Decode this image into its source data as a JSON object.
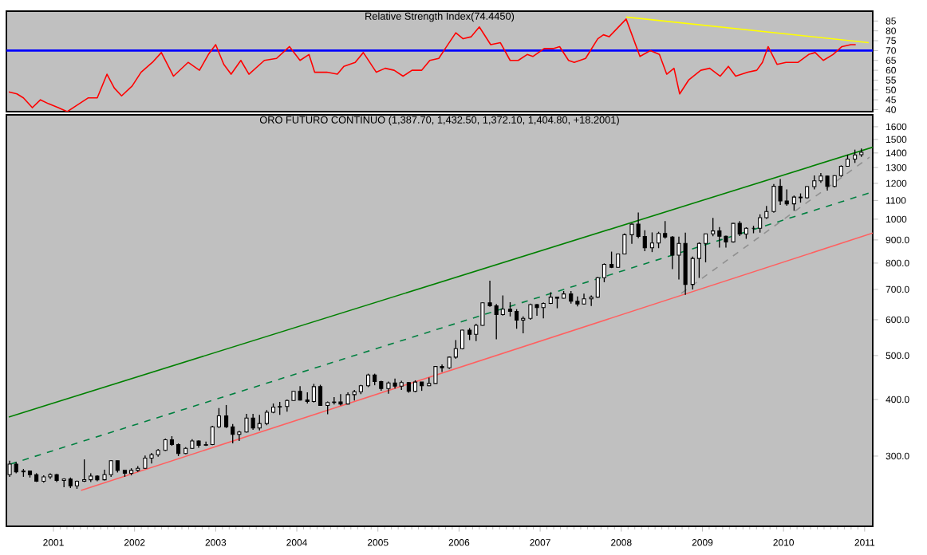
{
  "chart_data": [
    {
      "type": "line",
      "title": "Relative Strength Index(74.4450)",
      "tick_labels": "y",
      "xlim": [
        2000.42,
        2011.1
      ],
      "ylim": [
        39,
        90
      ],
      "yticks": [
        40,
        45,
        50,
        55,
        60,
        65,
        70,
        75,
        80,
        85
      ],
      "x": [
        2000.45,
        2000.55,
        2000.63,
        2000.74,
        2000.84,
        2000.94,
        2001.06,
        2001.17,
        2001.28,
        2001.43,
        2001.54,
        2001.66,
        2001.75,
        2001.84,
        2001.97,
        2002.08,
        2002.22,
        2002.33,
        2002.48,
        2002.66,
        2002.8,
        2002.91,
        2003.0,
        2003.1,
        2003.19,
        2003.31,
        2003.41,
        2003.6,
        2003.75,
        2003.91,
        2004.04,
        2004.15,
        2004.22,
        2004.37,
        2004.5,
        2004.58,
        2004.72,
        2004.82,
        2004.98,
        2005.09,
        2005.2,
        2005.31,
        2005.42,
        2005.54,
        2005.64,
        2005.75,
        2005.83,
        2005.96,
        2006.05,
        2006.15,
        2006.25,
        2006.39,
        2006.51,
        2006.63,
        2006.73,
        2006.84,
        2006.91,
        2007.05,
        2007.16,
        2007.24,
        2007.35,
        2007.42,
        2007.56,
        2007.71,
        2007.78,
        2007.85,
        2008.06,
        2008.23,
        2008.36,
        2008.47,
        2008.56,
        2008.65,
        2008.72,
        2008.83,
        2008.98,
        2009.09,
        2009.22,
        2009.32,
        2009.41,
        2009.56,
        2009.67,
        2009.74,
        2009.81,
        2009.92,
        2010.03,
        2010.18,
        2010.31,
        2010.39,
        2010.49,
        2010.61,
        2010.72,
        2010.83,
        2010.89
      ],
      "series": [
        {
          "color": "#ff0000",
          "values": [
            49,
            48,
            46,
            41,
            45,
            43,
            41,
            39,
            42,
            46,
            46,
            58,
            51,
            47,
            52,
            59,
            64,
            69,
            57,
            64,
            60,
            68,
            73,
            63,
            58,
            65,
            58,
            65,
            66,
            72,
            65,
            68,
            59,
            59,
            58,
            62,
            64,
            69,
            59,
            61,
            60,
            57,
            60,
            60,
            65,
            66,
            71,
            79,
            76,
            77,
            82,
            73,
            74,
            65,
            65,
            68,
            67,
            71,
            71,
            72,
            65,
            64,
            66,
            76,
            78,
            77,
            86,
            67,
            70,
            68,
            58,
            61,
            48,
            55,
            60,
            61,
            57,
            62,
            57,
            59,
            60,
            64,
            72,
            63,
            64,
            64,
            68,
            69,
            65,
            68,
            72,
            73,
            73
          ]
        },
        {
          "type": "line",
          "color": "#ffff00",
          "x": [
            2008.06,
            2011.05
          ],
          "values": [
            87,
            74
          ]
        }
      ],
      "ref_lines": [
        {
          "axis": "y",
          "value": 70,
          "color": "#0000ff"
        }
      ]
    },
    {
      "type": "candlestick",
      "title": "ORO FUTURO CONTINUO (1,387.70, 1,432.50, 1,372.10, 1,404.80, +18.2001)",
      "log": true,
      "xlim": [
        2000.42,
        2011.1
      ],
      "ylim": [
        210,
        1700
      ],
      "xticks": [
        2001,
        2002,
        2003,
        2004,
        2005,
        2006,
        2007,
        2008,
        2009,
        2010,
        2011
      ],
      "yticks": [
        {
          "value": 300,
          "label": "300.0"
        },
        {
          "value": 400,
          "label": "400.0"
        },
        {
          "value": 500,
          "label": "500.0"
        },
        {
          "value": 600,
          "label": "600.0"
        },
        {
          "value": 700,
          "label": "700.0"
        },
        {
          "value": 800,
          "label": "800.0"
        },
        {
          "value": 900,
          "label": "900.0"
        },
        1000,
        1100,
        1200,
        1300,
        1400,
        1500,
        1600
      ],
      "x": [
        2000.46,
        2000.54,
        2000.63,
        2000.71,
        2000.79,
        2000.88,
        2000.96,
        2001.04,
        2001.13,
        2001.21,
        2001.29,
        2001.38,
        2001.46,
        2001.54,
        2001.63,
        2001.71,
        2001.79,
        2001.88,
        2001.96,
        2002.04,
        2002.13,
        2002.21,
        2002.29,
        2002.38,
        2002.46,
        2002.54,
        2002.63,
        2002.71,
        2002.79,
        2002.88,
        2002.96,
        2003.04,
        2003.13,
        2003.21,
        2003.29,
        2003.38,
        2003.46,
        2003.54,
        2003.63,
        2003.71,
        2003.79,
        2003.88,
        2003.96,
        2004.04,
        2004.13,
        2004.21,
        2004.29,
        2004.38,
        2004.46,
        2004.54,
        2004.63,
        2004.71,
        2004.79,
        2004.88,
        2004.96,
        2005.04,
        2005.13,
        2005.21,
        2005.29,
        2005.38,
        2005.46,
        2005.54,
        2005.63,
        2005.71,
        2005.79,
        2005.88,
        2005.96,
        2006.04,
        2006.13,
        2006.21,
        2006.29,
        2006.38,
        2006.46,
        2006.54,
        2006.63,
        2006.71,
        2006.79,
        2006.88,
        2006.96,
        2007.04,
        2007.13,
        2007.21,
        2007.29,
        2007.38,
        2007.46,
        2007.54,
        2007.63,
        2007.71,
        2007.79,
        2007.88,
        2007.96,
        2008.04,
        2008.13,
        2008.21,
        2008.29,
        2008.38,
        2008.46,
        2008.54,
        2008.63,
        2008.71,
        2008.79,
        2008.88,
        2008.96,
        2009.04,
        2009.13,
        2009.21,
        2009.29,
        2009.38,
        2009.46,
        2009.54,
        2009.63,
        2009.71,
        2009.79,
        2009.88,
        2009.96,
        2010.04,
        2010.13,
        2010.21,
        2010.29,
        2010.38,
        2010.46,
        2010.54,
        2010.63,
        2010.71,
        2010.79,
        2010.88,
        2010.96
      ],
      "ohlc": [
        [
          273,
          293,
          270,
          288
        ],
        [
          288,
          291,
          275,
          277
        ],
        [
          277,
          281,
          270,
          278
        ],
        [
          278,
          278,
          269,
          273
        ],
        [
          273,
          275,
          263,
          264
        ],
        [
          264,
          272,
          262,
          270
        ],
        [
          270,
          275,
          267,
          273
        ],
        [
          273,
          274,
          263,
          265
        ],
        [
          265,
          268,
          256,
          267
        ],
        [
          267,
          269,
          255,
          258
        ],
        [
          258,
          265,
          254,
          264
        ],
        [
          264,
          295,
          263,
          266
        ],
        [
          266,
          275,
          263,
          271
        ],
        [
          271,
          272,
          264,
          266
        ],
        [
          266,
          280,
          265,
          273
        ],
        [
          273,
          294,
          270,
          293
        ],
        [
          293,
          293,
          276,
          279
        ],
        [
          279,
          279,
          270,
          275
        ],
        [
          275,
          282,
          272,
          279
        ],
        [
          279,
          285,
          277,
          282
        ],
        [
          282,
          301,
          281,
          297
        ],
        [
          297,
          305,
          289,
          302
        ],
        [
          302,
          311,
          299,
          309
        ],
        [
          309,
          328,
          308,
          326
        ],
        [
          326,
          332,
          316,
          318
        ],
        [
          318,
          320,
          300,
          304
        ],
        [
          304,
          314,
          303,
          312
        ],
        [
          312,
          327,
          311,
          324
        ],
        [
          324,
          325,
          313,
          317
        ],
        [
          317,
          323,
          316,
          318
        ],
        [
          318,
          350,
          317,
          348
        ],
        [
          348,
          383,
          346,
          368
        ],
        [
          368,
          389,
          346,
          348
        ],
        [
          348,
          353,
          320,
          335
        ],
        [
          335,
          341,
          324,
          339
        ],
        [
          339,
          372,
          338,
          364
        ],
        [
          364,
          372,
          343,
          346
        ],
        [
          346,
          370,
          342,
          354
        ],
        [
          354,
          379,
          351,
          375
        ],
        [
          375,
          392,
          373,
          385
        ],
        [
          385,
          395,
          370,
          386
        ],
        [
          386,
          400,
          376,
          398
        ],
        [
          398,
          418,
          397,
          417
        ],
        [
          417,
          428,
          398,
          399
        ],
        [
          399,
          415,
          392,
          396
        ],
        [
          396,
          433,
          394,
          427
        ],
        [
          427,
          431,
          388,
          388
        ],
        [
          388,
          396,
          371,
          394
        ],
        [
          394,
          405,
          390,
          395
        ],
        [
          395,
          411,
          388,
          391
        ],
        [
          391,
          415,
          390,
          410
        ],
        [
          410,
          420,
          398,
          416
        ],
        [
          416,
          431,
          411,
          429
        ],
        [
          429,
          456,
          426,
          453
        ],
        [
          453,
          456,
          430,
          438
        ],
        [
          438,
          440,
          418,
          423
        ],
        [
          423,
          438,
          412,
          435
        ],
        [
          435,
          445,
          423,
          428
        ],
        [
          428,
          440,
          420,
          436
        ],
        [
          436,
          437,
          414,
          417
        ],
        [
          417,
          441,
          415,
          437
        ],
        [
          437,
          437,
          418,
          429
        ],
        [
          429,
          447,
          428,
          434
        ],
        [
          434,
          474,
          434,
          473
        ],
        [
          473,
          478,
          460,
          470
        ],
        [
          470,
          498,
          467,
          496
        ],
        [
          496,
          541,
          492,
          518
        ],
        [
          518,
          570,
          516,
          569
        ],
        [
          569,
          575,
          541,
          557
        ],
        [
          557,
          588,
          538,
          583
        ],
        [
          583,
          655,
          582,
          654
        ],
        [
          654,
          732,
          641,
          644
        ],
        [
          644,
          650,
          543,
          616
        ],
        [
          616,
          679,
          613,
          633
        ],
        [
          633,
          656,
          610,
          626
        ],
        [
          626,
          633,
          573,
          599
        ],
        [
          599,
          610,
          560,
          604
        ],
        [
          604,
          651,
          600,
          648
        ],
        [
          648,
          650,
          612,
          638
        ],
        [
          638,
          655,
          604,
          652
        ],
        [
          652,
          690,
          650,
          673
        ],
        [
          673,
          674,
          636,
          669
        ],
        [
          669,
          694,
          668,
          684
        ],
        [
          684,
          694,
          651,
          659
        ],
        [
          659,
          675,
          642,
          650
        ],
        [
          650,
          685,
          648,
          667
        ],
        [
          667,
          679,
          643,
          673
        ],
        [
          673,
          746,
          671,
          743
        ],
        [
          743,
          799,
          726,
          795
        ],
        [
          795,
          848,
          780,
          783
        ],
        [
          783,
          840,
          781,
          838
        ],
        [
          838,
          930,
          836,
          924
        ],
        [
          924,
          978,
          882,
          975
        ],
        [
          975,
          1034,
          908,
          916
        ],
        [
          916,
          945,
          850,
          865
        ],
        [
          865,
          935,
          846,
          886
        ],
        [
          886,
          938,
          863,
          930
        ],
        [
          930,
          990,
          906,
          913
        ],
        [
          913,
          918,
          776,
          833
        ],
        [
          833,
          915,
          736,
          884
        ],
        [
          884,
          934,
          681,
          718
        ],
        [
          718,
          827,
          700,
          819
        ],
        [
          819,
          889,
          742,
          884
        ],
        [
          884,
          929,
          803,
          928
        ],
        [
          928,
          1007,
          917,
          942
        ],
        [
          942,
          961,
          866,
          917
        ],
        [
          917,
          920,
          866,
          891
        ],
        [
          891,
          980,
          888,
          979
        ],
        [
          979,
          990,
          918,
          927
        ],
        [
          927,
          960,
          905,
          955
        ],
        [
          955,
          967,
          931,
          955
        ],
        [
          955,
          1025,
          934,
          1008
        ],
        [
          1008,
          1070,
          1002,
          1040
        ],
        [
          1040,
          1196,
          1033,
          1182
        ],
        [
          1182,
          1227,
          1075,
          1097
        ],
        [
          1097,
          1163,
          1071,
          1081
        ],
        [
          1081,
          1128,
          1044,
          1119
        ],
        [
          1119,
          1140,
          1088,
          1115
        ],
        [
          1115,
          1183,
          1110,
          1180
        ],
        [
          1180,
          1249,
          1164,
          1215
        ],
        [
          1215,
          1265,
          1203,
          1245
        ],
        [
          1245,
          1248,
          1157,
          1181
        ],
        [
          1181,
          1250,
          1176,
          1248
        ],
        [
          1248,
          1315,
          1240,
          1309
        ],
        [
          1309,
          1388,
          1306,
          1357
        ],
        [
          1357,
          1424,
          1331,
          1386
        ],
        [
          1387.7,
          1432.5,
          1372.1,
          1404.8
        ]
      ],
      "series": [
        {
          "type": "line",
          "color": "#008000",
          "line_style": "solid",
          "x": [
            2000.45,
            2011.1
          ],
          "values": [
            366,
            1442
          ]
        },
        {
          "type": "line",
          "color": "#008040",
          "line_style": "dashed",
          "x": [
            2000.47,
            2011.1
          ],
          "values": [
            288,
            1149
          ]
        },
        {
          "type": "line",
          "color": "#ff6060",
          "line_style": "solid",
          "x": [
            2001.34,
            2011.1
          ],
          "values": [
            252,
            932
          ]
        },
        {
          "type": "line",
          "color": "#909090",
          "line_style": "dashed",
          "x": [
            2008.74,
            2011.06
          ],
          "values": [
            686,
            1370
          ]
        }
      ]
    }
  ]
}
